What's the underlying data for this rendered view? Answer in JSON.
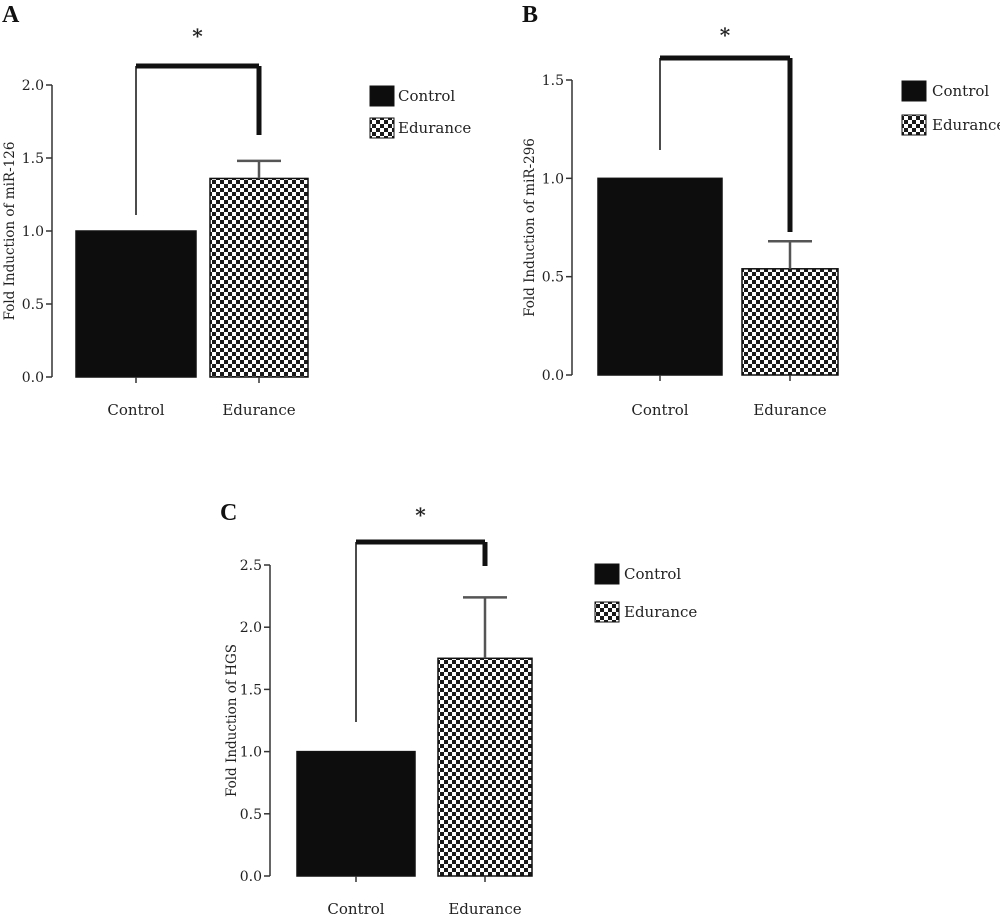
{
  "colors": {
    "control_fill": "#0d0d0d",
    "edurance_fill": "#ffffff",
    "edurance_pattern": "#1a1a1a",
    "error_bar": "#555555",
    "axis": "#333333"
  },
  "chart_data": [
    {
      "type": "bar",
      "panel": "A",
      "categories": [
        "Control",
        "Edurance"
      ],
      "series": [
        {
          "name": "Control",
          "values": [
            1.0,
            null
          ]
        },
        {
          "name": "Edurance",
          "values": [
            null,
            1.36
          ]
        }
      ],
      "values": [
        1.0,
        1.36
      ],
      "error_upper": [
        null,
        1.48
      ],
      "ylabel": "Fold Induction of miR-126",
      "xlabel": "",
      "ylim": [
        0,
        2.0
      ],
      "yticks": [
        "0.0",
        "0.5",
        "1.0",
        "1.5",
        "2.0"
      ],
      "significance": "*",
      "legend": [
        "Control",
        "Edurance"
      ],
      "legend_position": "right"
    },
    {
      "type": "bar",
      "panel": "B",
      "categories": [
        "Control",
        "Edurance"
      ],
      "series": [
        {
          "name": "Control",
          "values": [
            1.0,
            null
          ]
        },
        {
          "name": "Edurance",
          "values": [
            null,
            0.54
          ]
        }
      ],
      "values": [
        1.0,
        0.54
      ],
      "error_upper": [
        null,
        0.68
      ],
      "ylabel": "Fold Induction of miR-296",
      "xlabel": "",
      "ylim": [
        0,
        1.5
      ],
      "yticks": [
        "0.0",
        "0.5",
        "1.0",
        "1.5"
      ],
      "significance": "*",
      "legend": [
        "Control",
        "Edurance"
      ],
      "legend_position": "right"
    },
    {
      "type": "bar",
      "panel": "C",
      "categories": [
        "Control",
        "Edurance"
      ],
      "series": [
        {
          "name": "Control",
          "values": [
            1.0,
            null
          ]
        },
        {
          "name": "Edurance",
          "values": [
            null,
            1.75
          ]
        }
      ],
      "values": [
        1.0,
        1.75
      ],
      "error_upper": [
        null,
        2.24
      ],
      "ylabel": "Fold Induction of HGS",
      "xlabel": "",
      "ylim": [
        0,
        2.5
      ],
      "yticks": [
        "0.0",
        "0.5",
        "1.0",
        "1.5",
        "2.0",
        "2.5"
      ],
      "significance": "*",
      "legend": [
        "Control",
        "Edurance"
      ],
      "legend_position": "right"
    }
  ]
}
